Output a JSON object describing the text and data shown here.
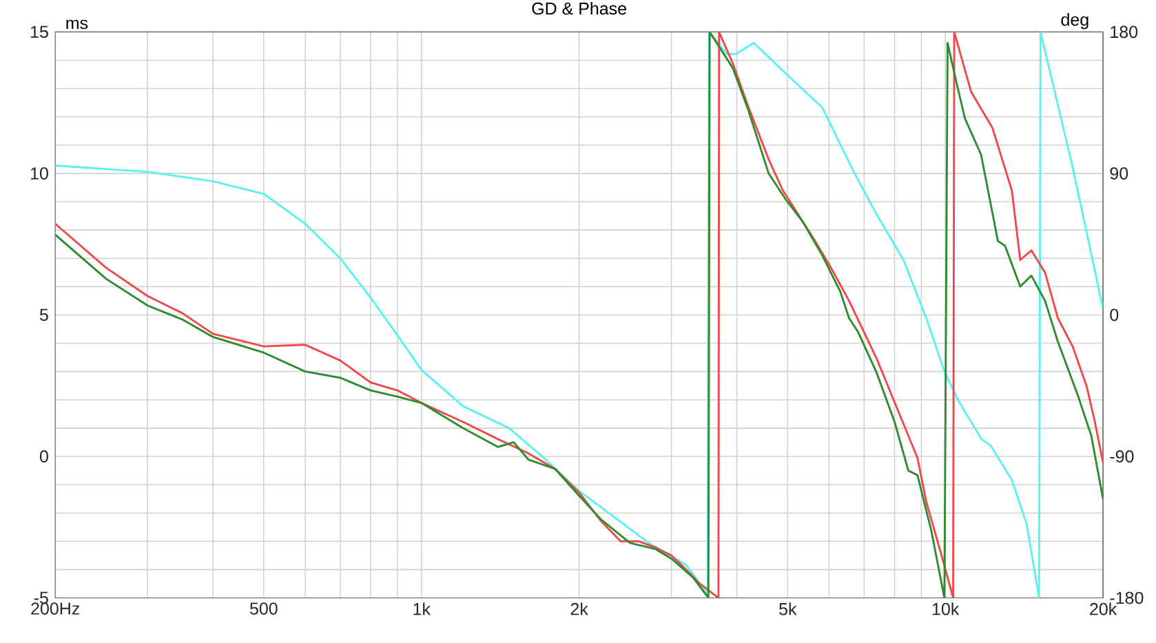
{
  "chart_data": {
    "type": "line",
    "title": "GD & Phase",
    "ylabel": "ms",
    "y2label": "deg",
    "log": "x",
    "grid": true,
    "marker": "none",
    "line_style": "solid",
    "xlim": [
      200,
      20000
    ],
    "xticks": [
      {
        "value": 200,
        "label": "200Hz"
      },
      {
        "value": 300,
        "label": null
      },
      {
        "value": 400,
        "label": null
      },
      {
        "value": 500,
        "label": "500"
      },
      {
        "value": 600,
        "label": null
      },
      {
        "value": 700,
        "label": null
      },
      {
        "value": 800,
        "label": null
      },
      {
        "value": 900,
        "label": null
      },
      {
        "value": 1000,
        "label": "1k"
      },
      {
        "value": 2000,
        "label": "2k"
      },
      {
        "value": 3000,
        "label": null
      },
      {
        "value": 4000,
        "label": null
      },
      {
        "value": 5000,
        "label": "5k"
      },
      {
        "value": 6000,
        "label": null
      },
      {
        "value": 7000,
        "label": null
      },
      {
        "value": 8000,
        "label": null
      },
      {
        "value": 9000,
        "label": null
      },
      {
        "value": 10000,
        "label": "10k"
      },
      {
        "value": 20000,
        "label": "20k"
      }
    ],
    "ylim": [
      -5,
      15
    ],
    "yticks": [
      -5,
      {
        "value": -4,
        "label": null
      },
      {
        "value": -3,
        "label": null
      },
      {
        "value": -2,
        "label": null
      },
      {
        "value": -1,
        "label": null
      },
      0,
      {
        "value": 1,
        "label": null
      },
      {
        "value": 2,
        "label": null
      },
      {
        "value": 3,
        "label": null
      },
      {
        "value": 4,
        "label": null
      },
      5,
      {
        "value": 6,
        "label": null
      },
      {
        "value": 7,
        "label": null
      },
      {
        "value": 8,
        "label": null
      },
      {
        "value": 9,
        "label": null
      },
      10,
      {
        "value": 11,
        "label": null
      },
      {
        "value": 12,
        "label": null
      },
      {
        "value": 13,
        "label": null
      },
      {
        "value": 14,
        "label": null
      },
      15
    ],
    "y2lim": [
      -180,
      180
    ],
    "y2ticks": [
      -180,
      -90,
      0,
      90,
      180
    ],
    "series": [
      {
        "color": "#5cf0f0",
        "axis": "y2",
        "x": [
          200,
          300,
          400,
          500,
          600,
          700,
          800,
          900,
          1000,
          1200,
          1470,
          1700,
          2000,
          2430,
          2740,
          3200,
          3470,
          3520,
          3540,
          3830,
          3990,
          4310,
          4980,
          5820,
          6710,
          7390,
          8320,
          9220,
          9960,
          10570,
          11720,
          12200,
          13400,
          14300,
          15100,
          15200,
          17500,
          20000
        ],
        "values": [
          95,
          91,
          85,
          77,
          58,
          36,
          11,
          -13,
          -35,
          -58,
          -72,
          -90,
          -112,
          -133,
          -146,
          -159,
          -175,
          -180,
          180,
          166,
          166,
          173,
          153,
          132,
          90,
          64,
          35,
          -3,
          -36,
          -54,
          -79,
          -83,
          -105,
          -133,
          -180,
          180,
          94,
          4
        ]
      },
      {
        "color": "#f04848",
        "axis": "y2",
        "x": [
          200,
          250,
          300,
          350,
          400,
          500,
          600,
          700,
          800,
          900,
          1000,
          1200,
          1400,
          1600,
          1800,
          2000,
          2200,
          2400,
          2600,
          2800,
          3000,
          3200,
          3400,
          3690,
          3700,
          3930,
          4200,
          4600,
          4900,
          5100,
          5570,
          6050,
          6550,
          7400,
          8150,
          8850,
          9200,
          9800,
          10350,
          10400,
          11200,
          12300,
          13400,
          13900,
          14600,
          15500,
          16400,
          17500,
          18600,
          19300,
          20000
        ],
        "values": [
          58,
          30,
          12,
          1,
          -12,
          -20,
          -19,
          -29,
          -43,
          -48,
          -56,
          -68,
          -79,
          -88,
          -98,
          -113,
          -131,
          -144,
          -144,
          -148,
          -153,
          -162,
          -171,
          -180,
          180,
          160,
          133,
          99,
          79,
          70,
          50,
          30,
          9,
          -28,
          -62,
          -91,
          -119,
          -151,
          -180,
          180,
          142,
          119,
          79,
          35,
          41,
          27,
          -2,
          -20,
          -45,
          -68,
          -94
        ]
      },
      {
        "color": "#2e8b2e",
        "axis": "y2",
        "x": [
          200,
          250,
          300,
          350,
          400,
          500,
          600,
          700,
          800,
          900,
          1000,
          1200,
          1400,
          1500,
          1600,
          1800,
          2000,
          2200,
          2500,
          2800,
          3000,
          3300,
          3530,
          3550,
          3930,
          4200,
          4600,
          4970,
          5350,
          5820,
          6300,
          6550,
          6820,
          7400,
          8000,
          8500,
          8850,
          9400,
          9960,
          10100,
          10500,
          10900,
          11700,
          12600,
          13000,
          13900,
          14600,
          15500,
          16400,
          17900,
          19000,
          20000
        ],
        "values": [
          51,
          23,
          6,
          -3,
          -14,
          -24,
          -36,
          -40,
          -48,
          -52,
          -56,
          -72,
          -84,
          -81,
          -92,
          -98,
          -115,
          -130,
          -145,
          -149,
          -155,
          -167,
          -180,
          180,
          157,
          131,
          90,
          73,
          59,
          38,
          15,
          -2,
          -11,
          -37,
          -68,
          -99,
          -102,
          -137,
          -180,
          173,
          148,
          125,
          102,
          47,
          44,
          18,
          25,
          9,
          -17,
          -51,
          -77,
          -117
        ]
      }
    ]
  }
}
